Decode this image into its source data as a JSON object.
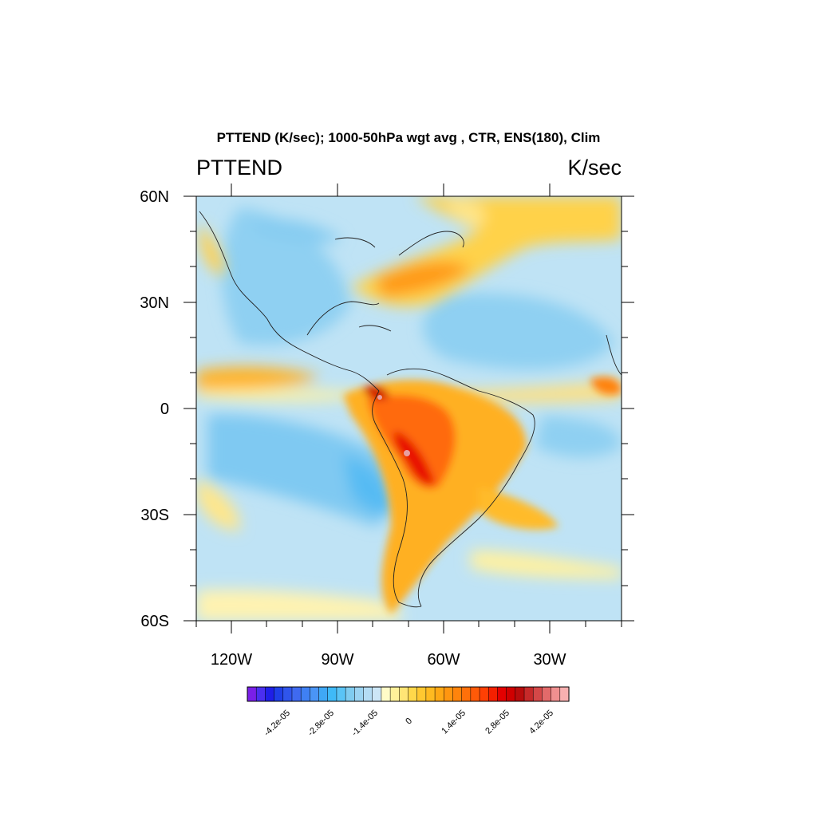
{
  "title": "PTTEND (K/sec); 1000-50hPa wgt avg , CTR, ENS(180), Clim",
  "left_label": "PTTEND",
  "right_label": "K/sec",
  "y_ticks": [
    "60N",
    "30N",
    "0",
    "30S",
    "60S"
  ],
  "x_ticks": [
    "120W",
    "90W",
    "60W",
    "30W"
  ],
  "colorbar_labels": [
    "-4.2e-05",
    "-2.8e-05",
    "-1.4e-05",
    "0",
    "1.4e-05",
    "2.8e-05",
    "4.2e-05"
  ],
  "colorbar_colors": [
    "#7a1fe8",
    "#4a2ff0",
    "#1f1fe8",
    "#1f3fe8",
    "#2f55ec",
    "#3f6af0",
    "#3f80f4",
    "#4a95f6",
    "#3fa8f6",
    "#3fbaf8",
    "#5ac4f6",
    "#80ccf0",
    "#9cd4f2",
    "#b4dcf4",
    "#cce6f6",
    "#fffcc8",
    "#fff19a",
    "#ffe575",
    "#ffd84a",
    "#ffc830",
    "#ffba20",
    "#ffa814",
    "#ff9610",
    "#ff840c",
    "#ff700a",
    "#ff5a08",
    "#ff4004",
    "#f42000",
    "#e40000",
    "#d00000",
    "#b80c0c",
    "#c62a2a",
    "#d44848",
    "#e26a6a",
    "#f09090",
    "#f8b0b0"
  ],
  "map": {
    "lon_range": [
      -130,
      -10
    ],
    "lat_range": [
      -60,
      60
    ],
    "field": "PTTEND",
    "units": "K/sec",
    "ocean_base_color": "#bfe3f5"
  }
}
